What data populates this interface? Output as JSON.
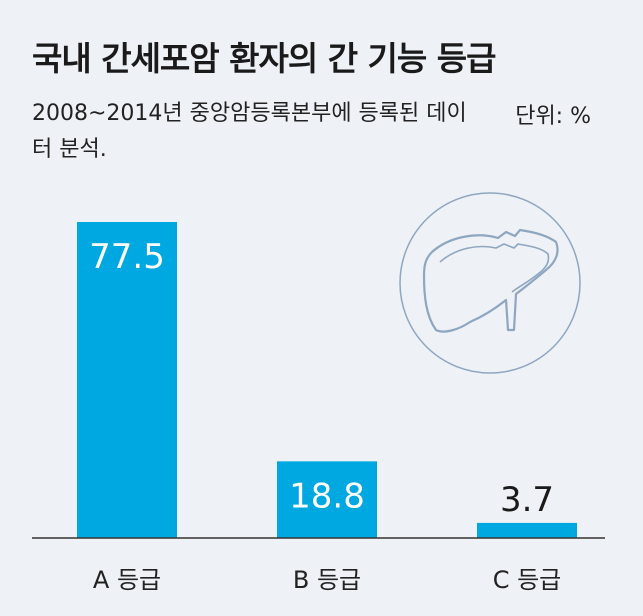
{
  "header": {
    "title": "국내 간세포암 환자의 간 기능 등급",
    "subtitle": "2008~2014년 중앙암등록본부에 등록된 데이터 분석.",
    "unit": "단위: %"
  },
  "colors": {
    "bar": "#00a8e1",
    "axis": "#333333",
    "label_inside": "#ffffff",
    "label_outside": "#1a1a1a",
    "icon_stroke": "#8fa6c0"
  },
  "icon": "liver-icon",
  "chart_data": {
    "type": "bar",
    "categories": [
      "A 등급",
      "B 등급",
      "C 등급"
    ],
    "values": [
      77.5,
      18.8,
      3.7
    ],
    "value_labels": [
      "77.5",
      "18.8",
      "3.7"
    ],
    "title": "국내 간세포암 환자의 간 기능 등급",
    "xlabel": "",
    "ylabel": "",
    "ylim": [
      0,
      77.5
    ],
    "grid": false,
    "legend": "none"
  }
}
